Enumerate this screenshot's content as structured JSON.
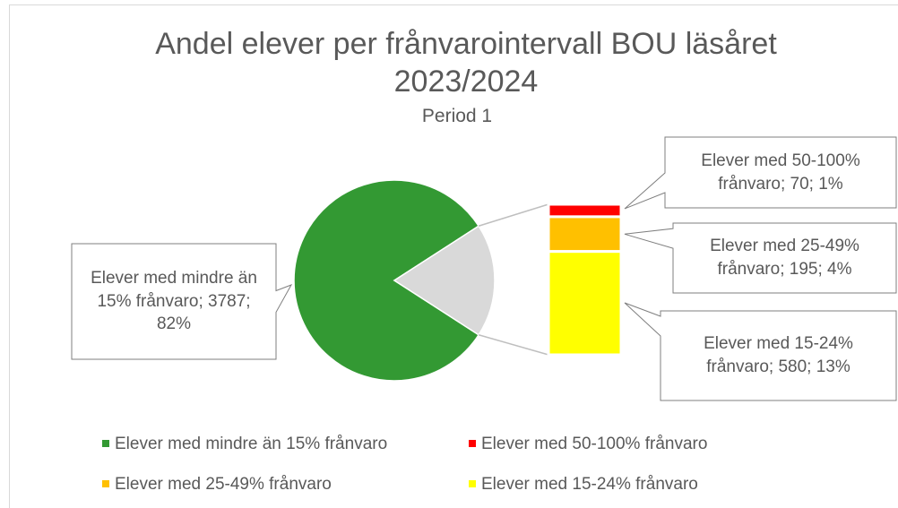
{
  "chart_data": {
    "type": "pie-of-bar",
    "title": "Andel elever per frånvarointervall BOU läsåret 2023/2024",
    "subtitle": "Period 1",
    "categories": [
      "Elever med mindre än 15% frånvaro",
      "Elever med 50-100% frånvaro",
      "Elever med 25-49% frånvaro",
      "Elever med 15-24% frånvaro"
    ],
    "values": [
      3787,
      70,
      195,
      580
    ],
    "value_labels": [
      "Elever med mindre än 15% frånvaro; 3787; 82%",
      "Elever med 50-100% frånvaro; 70; 1%",
      "Elever med 25-49% frånvaro; 195; 4%",
      "Elever med 15-24% frånvaro; 580; 13%"
    ],
    "colors": [
      "#339933",
      "#ff0000",
      "#ffc000",
      "#ffff00"
    ],
    "legend": "bottom"
  }
}
